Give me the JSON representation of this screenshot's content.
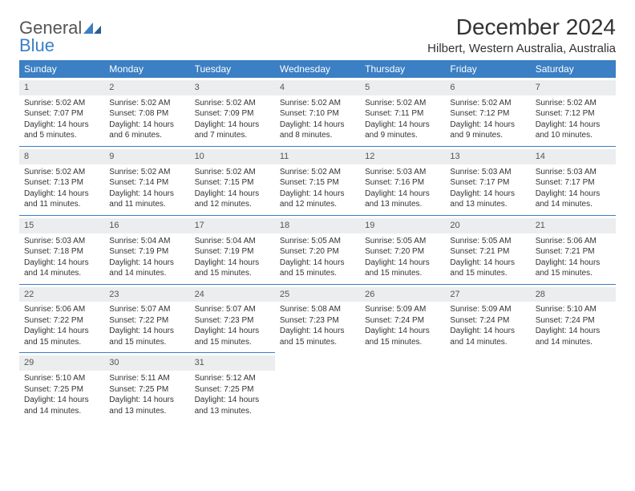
{
  "logo": {
    "general": "General",
    "blue": "Blue"
  },
  "title": "December 2024",
  "location": "Hilbert, Western Australia, Australia",
  "colors": {
    "header_bg": "#3b7fc4",
    "header_text": "#ffffff",
    "day_strip_bg": "#ecedee",
    "cell_divider": "#3b7fc4",
    "body_text": "#333333"
  },
  "day_headers": [
    "Sunday",
    "Monday",
    "Tuesday",
    "Wednesday",
    "Thursday",
    "Friday",
    "Saturday"
  ],
  "weeks": [
    [
      {
        "n": "1",
        "sunrise": "Sunrise: 5:02 AM",
        "sunset": "Sunset: 7:07 PM",
        "d1": "Daylight: 14 hours",
        "d2": "and 5 minutes."
      },
      {
        "n": "2",
        "sunrise": "Sunrise: 5:02 AM",
        "sunset": "Sunset: 7:08 PM",
        "d1": "Daylight: 14 hours",
        "d2": "and 6 minutes."
      },
      {
        "n": "3",
        "sunrise": "Sunrise: 5:02 AM",
        "sunset": "Sunset: 7:09 PM",
        "d1": "Daylight: 14 hours",
        "d2": "and 7 minutes."
      },
      {
        "n": "4",
        "sunrise": "Sunrise: 5:02 AM",
        "sunset": "Sunset: 7:10 PM",
        "d1": "Daylight: 14 hours",
        "d2": "and 8 minutes."
      },
      {
        "n": "5",
        "sunrise": "Sunrise: 5:02 AM",
        "sunset": "Sunset: 7:11 PM",
        "d1": "Daylight: 14 hours",
        "d2": "and 9 minutes."
      },
      {
        "n": "6",
        "sunrise": "Sunrise: 5:02 AM",
        "sunset": "Sunset: 7:12 PM",
        "d1": "Daylight: 14 hours",
        "d2": "and 9 minutes."
      },
      {
        "n": "7",
        "sunrise": "Sunrise: 5:02 AM",
        "sunset": "Sunset: 7:12 PM",
        "d1": "Daylight: 14 hours",
        "d2": "and 10 minutes."
      }
    ],
    [
      {
        "n": "8",
        "sunrise": "Sunrise: 5:02 AM",
        "sunset": "Sunset: 7:13 PM",
        "d1": "Daylight: 14 hours",
        "d2": "and 11 minutes."
      },
      {
        "n": "9",
        "sunrise": "Sunrise: 5:02 AM",
        "sunset": "Sunset: 7:14 PM",
        "d1": "Daylight: 14 hours",
        "d2": "and 11 minutes."
      },
      {
        "n": "10",
        "sunrise": "Sunrise: 5:02 AM",
        "sunset": "Sunset: 7:15 PM",
        "d1": "Daylight: 14 hours",
        "d2": "and 12 minutes."
      },
      {
        "n": "11",
        "sunrise": "Sunrise: 5:02 AM",
        "sunset": "Sunset: 7:15 PM",
        "d1": "Daylight: 14 hours",
        "d2": "and 12 minutes."
      },
      {
        "n": "12",
        "sunrise": "Sunrise: 5:03 AM",
        "sunset": "Sunset: 7:16 PM",
        "d1": "Daylight: 14 hours",
        "d2": "and 13 minutes."
      },
      {
        "n": "13",
        "sunrise": "Sunrise: 5:03 AM",
        "sunset": "Sunset: 7:17 PM",
        "d1": "Daylight: 14 hours",
        "d2": "and 13 minutes."
      },
      {
        "n": "14",
        "sunrise": "Sunrise: 5:03 AM",
        "sunset": "Sunset: 7:17 PM",
        "d1": "Daylight: 14 hours",
        "d2": "and 14 minutes."
      }
    ],
    [
      {
        "n": "15",
        "sunrise": "Sunrise: 5:03 AM",
        "sunset": "Sunset: 7:18 PM",
        "d1": "Daylight: 14 hours",
        "d2": "and 14 minutes."
      },
      {
        "n": "16",
        "sunrise": "Sunrise: 5:04 AM",
        "sunset": "Sunset: 7:19 PM",
        "d1": "Daylight: 14 hours",
        "d2": "and 14 minutes."
      },
      {
        "n": "17",
        "sunrise": "Sunrise: 5:04 AM",
        "sunset": "Sunset: 7:19 PM",
        "d1": "Daylight: 14 hours",
        "d2": "and 15 minutes."
      },
      {
        "n": "18",
        "sunrise": "Sunrise: 5:05 AM",
        "sunset": "Sunset: 7:20 PM",
        "d1": "Daylight: 14 hours",
        "d2": "and 15 minutes."
      },
      {
        "n": "19",
        "sunrise": "Sunrise: 5:05 AM",
        "sunset": "Sunset: 7:20 PM",
        "d1": "Daylight: 14 hours",
        "d2": "and 15 minutes."
      },
      {
        "n": "20",
        "sunrise": "Sunrise: 5:05 AM",
        "sunset": "Sunset: 7:21 PM",
        "d1": "Daylight: 14 hours",
        "d2": "and 15 minutes."
      },
      {
        "n": "21",
        "sunrise": "Sunrise: 5:06 AM",
        "sunset": "Sunset: 7:21 PM",
        "d1": "Daylight: 14 hours",
        "d2": "and 15 minutes."
      }
    ],
    [
      {
        "n": "22",
        "sunrise": "Sunrise: 5:06 AM",
        "sunset": "Sunset: 7:22 PM",
        "d1": "Daylight: 14 hours",
        "d2": "and 15 minutes."
      },
      {
        "n": "23",
        "sunrise": "Sunrise: 5:07 AM",
        "sunset": "Sunset: 7:22 PM",
        "d1": "Daylight: 14 hours",
        "d2": "and 15 minutes."
      },
      {
        "n": "24",
        "sunrise": "Sunrise: 5:07 AM",
        "sunset": "Sunset: 7:23 PM",
        "d1": "Daylight: 14 hours",
        "d2": "and 15 minutes."
      },
      {
        "n": "25",
        "sunrise": "Sunrise: 5:08 AM",
        "sunset": "Sunset: 7:23 PM",
        "d1": "Daylight: 14 hours",
        "d2": "and 15 minutes."
      },
      {
        "n": "26",
        "sunrise": "Sunrise: 5:09 AM",
        "sunset": "Sunset: 7:24 PM",
        "d1": "Daylight: 14 hours",
        "d2": "and 15 minutes."
      },
      {
        "n": "27",
        "sunrise": "Sunrise: 5:09 AM",
        "sunset": "Sunset: 7:24 PM",
        "d1": "Daylight: 14 hours",
        "d2": "and 14 minutes."
      },
      {
        "n": "28",
        "sunrise": "Sunrise: 5:10 AM",
        "sunset": "Sunset: 7:24 PM",
        "d1": "Daylight: 14 hours",
        "d2": "and 14 minutes."
      }
    ],
    [
      {
        "n": "29",
        "sunrise": "Sunrise: 5:10 AM",
        "sunset": "Sunset: 7:25 PM",
        "d1": "Daylight: 14 hours",
        "d2": "and 14 minutes."
      },
      {
        "n": "30",
        "sunrise": "Sunrise: 5:11 AM",
        "sunset": "Sunset: 7:25 PM",
        "d1": "Daylight: 14 hours",
        "d2": "and 13 minutes."
      },
      {
        "n": "31",
        "sunrise": "Sunrise: 5:12 AM",
        "sunset": "Sunset: 7:25 PM",
        "d1": "Daylight: 14 hours",
        "d2": "and 13 minutes."
      },
      null,
      null,
      null,
      null
    ]
  ]
}
